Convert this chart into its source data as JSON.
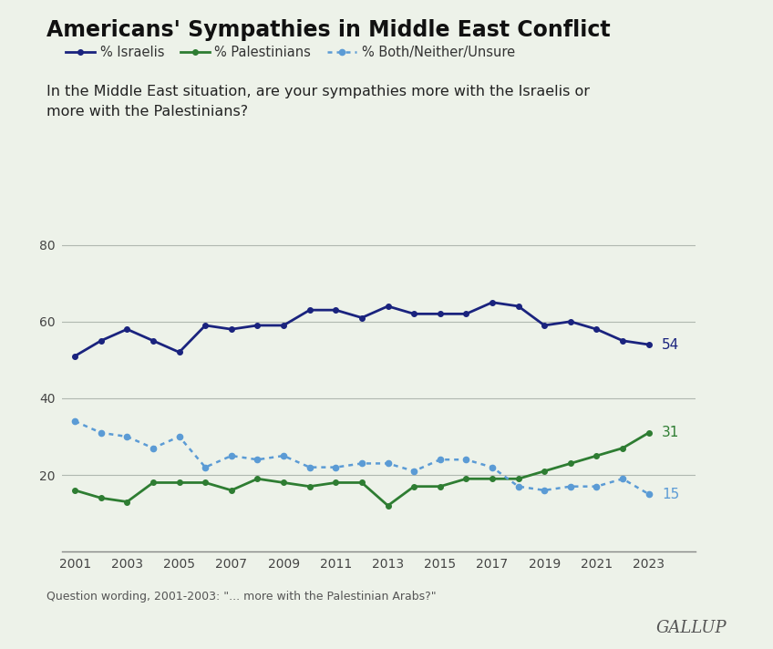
{
  "title": "Americans' Sympathies in Middle East Conflict",
  "subtitle": "In the Middle East situation, are your sympathies more with the Israelis or\nmore with the Palestinians?",
  "footnote": "Question wording, 2001-2003: \"... more with the Palestinian Arabs?\"",
  "source": "GALLUP",
  "background_color": "#edf2e9",
  "years": [
    2001,
    2002,
    2003,
    2004,
    2005,
    2006,
    2007,
    2008,
    2009,
    2010,
    2011,
    2012,
    2013,
    2014,
    2015,
    2016,
    2017,
    2018,
    2019,
    2020,
    2021,
    2022,
    2023
  ],
  "israelis": [
    51,
    55,
    58,
    55,
    52,
    59,
    58,
    59,
    59,
    63,
    63,
    61,
    64,
    62,
    62,
    62,
    65,
    64,
    59,
    60,
    58,
    55,
    54
  ],
  "palestinians": [
    16,
    14,
    13,
    18,
    18,
    18,
    16,
    19,
    18,
    17,
    18,
    18,
    12,
    17,
    17,
    19,
    19,
    19,
    21,
    23,
    25,
    27,
    31
  ],
  "both_neither": [
    34,
    31,
    30,
    27,
    30,
    22,
    25,
    24,
    25,
    22,
    22,
    23,
    23,
    21,
    24,
    24,
    22,
    17,
    16,
    17,
    17,
    19,
    15
  ],
  "israelis_color": "#1a237e",
  "palestinians_color": "#2e7d32",
  "both_neither_color": "#5b9bd5",
  "ylim": [
    0,
    88
  ],
  "yticks": [
    0,
    20,
    40,
    60,
    80
  ],
  "end_label_israelis": "54",
  "end_label_palestinians": "31",
  "end_label_both": "15"
}
